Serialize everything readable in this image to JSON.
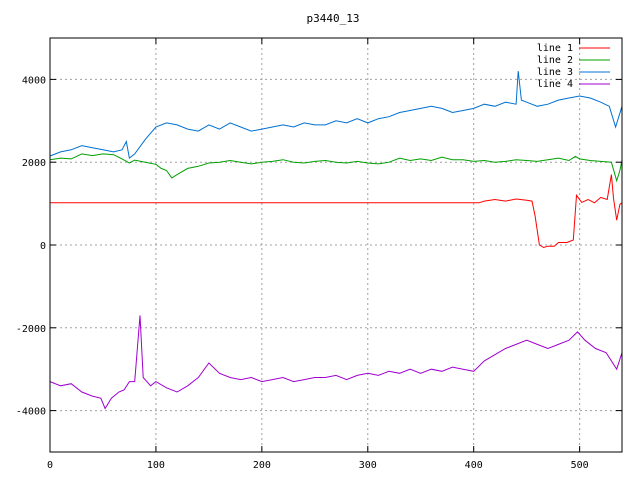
{
  "chart_data": {
    "type": "line",
    "title": "p3440_13",
    "xlabel": "",
    "ylabel": "",
    "xlim": [
      0,
      540
    ],
    "ylim": [
      -5000,
      5000
    ],
    "xticks": [
      0,
      100,
      200,
      300,
      400,
      500
    ],
    "yticks": [
      -4000,
      -2000,
      0,
      2000,
      4000
    ],
    "xtick_labels": [
      "0",
      "100",
      "200",
      "300",
      "400",
      "500"
    ],
    "ytick_labels": [
      "-4000",
      "-2000",
      "0",
      "2000",
      "4000"
    ],
    "grid": true,
    "legend_position": "top-right",
    "series": [
      {
        "name": "line 1",
        "color": "#ff0000",
        "points": [
          [
            0,
            1020
          ],
          [
            100,
            1020
          ],
          [
            200,
            1020
          ],
          [
            300,
            1020
          ],
          [
            405,
            1020
          ],
          [
            410,
            1060
          ],
          [
            420,
            1100
          ],
          [
            430,
            1060
          ],
          [
            440,
            1110
          ],
          [
            450,
            1080
          ],
          [
            455,
            1060
          ],
          [
            458,
            700
          ],
          [
            462,
            0
          ],
          [
            466,
            -60
          ],
          [
            470,
            -30
          ],
          [
            476,
            -30
          ],
          [
            480,
            60
          ],
          [
            488,
            60
          ],
          [
            494,
            120
          ],
          [
            497,
            1200
          ],
          [
            502,
            1030
          ],
          [
            508,
            1100
          ],
          [
            514,
            1020
          ],
          [
            520,
            1150
          ],
          [
            526,
            1100
          ],
          [
            530,
            1700
          ],
          [
            532,
            1130
          ],
          [
            535,
            600
          ],
          [
            538,
            980
          ],
          [
            540,
            1020
          ]
        ]
      },
      {
        "name": "line 2",
        "color": "#00a000",
        "points": [
          [
            0,
            2060
          ],
          [
            10,
            2100
          ],
          [
            20,
            2080
          ],
          [
            30,
            2200
          ],
          [
            40,
            2160
          ],
          [
            50,
            2200
          ],
          [
            60,
            2180
          ],
          [
            68,
            2080
          ],
          [
            75,
            1980
          ],
          [
            80,
            2050
          ],
          [
            90,
            2000
          ],
          [
            100,
            1950
          ],
          [
            105,
            1850
          ],
          [
            110,
            1800
          ],
          [
            115,
            1620
          ],
          [
            120,
            1700
          ],
          [
            130,
            1850
          ],
          [
            140,
            1900
          ],
          [
            150,
            1980
          ],
          [
            160,
            2000
          ],
          [
            170,
            2040
          ],
          [
            180,
            2000
          ],
          [
            190,
            1960
          ],
          [
            200,
            2000
          ],
          [
            210,
            2020
          ],
          [
            220,
            2060
          ],
          [
            230,
            2000
          ],
          [
            240,
            1980
          ],
          [
            250,
            2020
          ],
          [
            260,
            2040
          ],
          [
            270,
            2000
          ],
          [
            280,
            1980
          ],
          [
            290,
            2020
          ],
          [
            300,
            1980
          ],
          [
            310,
            1960
          ],
          [
            320,
            2000
          ],
          [
            330,
            2100
          ],
          [
            340,
            2040
          ],
          [
            350,
            2080
          ],
          [
            360,
            2040
          ],
          [
            370,
            2120
          ],
          [
            380,
            2060
          ],
          [
            390,
            2060
          ],
          [
            400,
            2020
          ],
          [
            410,
            2040
          ],
          [
            420,
            2000
          ],
          [
            430,
            2020
          ],
          [
            440,
            2060
          ],
          [
            450,
            2040
          ],
          [
            460,
            2020
          ],
          [
            470,
            2060
          ],
          [
            480,
            2100
          ],
          [
            490,
            2040
          ],
          [
            496,
            2140
          ],
          [
            500,
            2080
          ],
          [
            510,
            2040
          ],
          [
            520,
            2020
          ],
          [
            530,
            2000
          ],
          [
            535,
            1550
          ],
          [
            538,
            1800
          ],
          [
            540,
            2050
          ]
        ]
      },
      {
        "name": "line 3",
        "color": "#0070d0",
        "points": [
          [
            0,
            2150
          ],
          [
            10,
            2250
          ],
          [
            20,
            2300
          ],
          [
            30,
            2400
          ],
          [
            40,
            2350
          ],
          [
            50,
            2300
          ],
          [
            60,
            2250
          ],
          [
            68,
            2300
          ],
          [
            72,
            2500
          ],
          [
            75,
            2100
          ],
          [
            80,
            2200
          ],
          [
            90,
            2550
          ],
          [
            95,
            2700
          ],
          [
            100,
            2850
          ],
          [
            110,
            2950
          ],
          [
            120,
            2900
          ],
          [
            130,
            2800
          ],
          [
            140,
            2750
          ],
          [
            150,
            2900
          ],
          [
            160,
            2800
          ],
          [
            170,
            2950
          ],
          [
            180,
            2850
          ],
          [
            190,
            2750
          ],
          [
            200,
            2800
          ],
          [
            210,
            2850
          ],
          [
            220,
            2900
          ],
          [
            230,
            2850
          ],
          [
            240,
            2950
          ],
          [
            250,
            2900
          ],
          [
            260,
            2900
          ],
          [
            270,
            3000
          ],
          [
            280,
            2950
          ],
          [
            290,
            3050
          ],
          [
            300,
            2950
          ],
          [
            310,
            3050
          ],
          [
            320,
            3100
          ],
          [
            330,
            3200
          ],
          [
            340,
            3250
          ],
          [
            350,
            3300
          ],
          [
            360,
            3350
          ],
          [
            370,
            3300
          ],
          [
            380,
            3200
          ],
          [
            390,
            3250
          ],
          [
            400,
            3300
          ],
          [
            410,
            3400
          ],
          [
            420,
            3350
          ],
          [
            430,
            3450
          ],
          [
            440,
            3400
          ],
          [
            442,
            4200
          ],
          [
            445,
            3500
          ],
          [
            450,
            3450
          ],
          [
            460,
            3350
          ],
          [
            470,
            3400
          ],
          [
            480,
            3500
          ],
          [
            490,
            3550
          ],
          [
            500,
            3600
          ],
          [
            510,
            3550
          ],
          [
            520,
            3450
          ],
          [
            528,
            3350
          ],
          [
            534,
            2850
          ],
          [
            540,
            3350
          ]
        ]
      },
      {
        "name": "line 4",
        "color": "#a000d0",
        "points": [
          [
            0,
            -3300
          ],
          [
            10,
            -3400
          ],
          [
            20,
            -3350
          ],
          [
            30,
            -3550
          ],
          [
            40,
            -3650
          ],
          [
            48,
            -3700
          ],
          [
            52,
            -3950
          ],
          [
            58,
            -3700
          ],
          [
            65,
            -3550
          ],
          [
            70,
            -3500
          ],
          [
            75,
            -3300
          ],
          [
            80,
            -3300
          ],
          [
            85,
            -1700
          ],
          [
            88,
            -3200
          ],
          [
            95,
            -3400
          ],
          [
            100,
            -3300
          ],
          [
            110,
            -3450
          ],
          [
            120,
            -3550
          ],
          [
            130,
            -3400
          ],
          [
            140,
            -3200
          ],
          [
            150,
            -2850
          ],
          [
            160,
            -3100
          ],
          [
            170,
            -3200
          ],
          [
            180,
            -3250
          ],
          [
            190,
            -3200
          ],
          [
            200,
            -3300
          ],
          [
            210,
            -3250
          ],
          [
            220,
            -3200
          ],
          [
            230,
            -3300
          ],
          [
            240,
            -3250
          ],
          [
            250,
            -3200
          ],
          [
            260,
            -3200
          ],
          [
            270,
            -3150
          ],
          [
            280,
            -3250
          ],
          [
            290,
            -3150
          ],
          [
            300,
            -3100
          ],
          [
            310,
            -3150
          ],
          [
            320,
            -3050
          ],
          [
            330,
            -3100
          ],
          [
            340,
            -3000
          ],
          [
            350,
            -3100
          ],
          [
            360,
            -3000
          ],
          [
            370,
            -3050
          ],
          [
            380,
            -2950
          ],
          [
            390,
            -3000
          ],
          [
            400,
            -3050
          ],
          [
            410,
            -2800
          ],
          [
            420,
            -2650
          ],
          [
            430,
            -2500
          ],
          [
            440,
            -2400
          ],
          [
            450,
            -2300
          ],
          [
            460,
            -2400
          ],
          [
            470,
            -2500
          ],
          [
            480,
            -2400
          ],
          [
            490,
            -2300
          ],
          [
            498,
            -2100
          ],
          [
            505,
            -2300
          ],
          [
            515,
            -2500
          ],
          [
            525,
            -2600
          ],
          [
            535,
            -3000
          ],
          [
            540,
            -2600
          ]
        ]
      }
    ]
  }
}
